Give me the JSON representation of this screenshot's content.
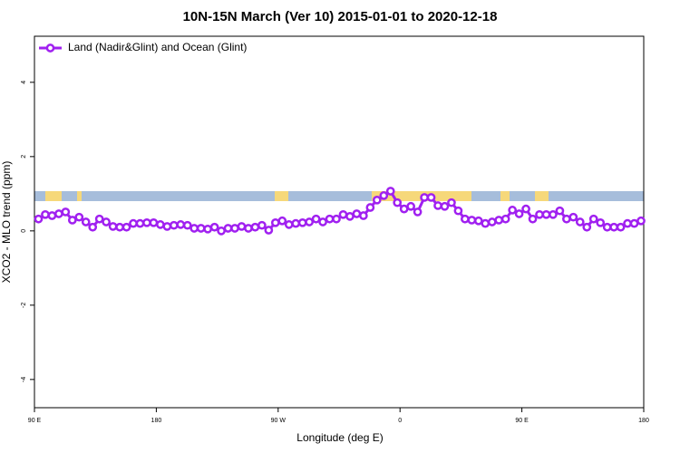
{
  "chart_data": {
    "type": "line",
    "title": "10N-15N March (Ver 10)   2015-01-01 to 2020-12-18",
    "xlabel": "Longitude (deg E)",
    "ylabel": "XCO2 - MLO trend (ppm)",
    "xlim": [
      90,
      540
    ],
    "xticks": [
      {
        "value": 90,
        "label": "90 E"
      },
      {
        "value": 180,
        "label": "180"
      },
      {
        "value": 270,
        "label": "90 W"
      },
      {
        "value": 360,
        "label": "0"
      },
      {
        "value": 450,
        "label": "90 E"
      },
      {
        "value": 540,
        "label": "180"
      }
    ],
    "ylim": [
      -4.76,
      5.24
    ],
    "yticks": [
      -4,
      -2,
      0,
      2,
      4
    ],
    "legend": "top-left",
    "x": [
      93,
      98,
      103,
      108,
      113,
      118,
      123,
      128,
      133,
      138,
      143,
      148,
      153,
      158,
      163,
      168,
      173,
      178,
      183,
      188,
      193,
      198,
      203,
      208,
      213,
      218,
      223,
      228,
      233,
      238,
      243,
      248,
      253,
      258,
      263,
      268,
      273,
      278,
      283,
      288,
      293,
      298,
      303,
      308,
      313,
      318,
      323,
      328,
      333,
      338,
      343,
      348,
      353,
      358,
      363,
      368,
      373,
      378,
      383,
      388,
      393,
      398,
      403,
      408,
      413,
      418,
      423,
      428,
      433,
      438,
      443,
      448,
      453,
      458,
      463,
      468,
      473,
      478,
      483,
      488,
      493,
      498,
      503,
      508,
      513,
      518,
      523,
      528,
      533,
      538
    ],
    "series": [
      {
        "name": "Land (Nadir&Glint) and Ocean (Glint)",
        "color": "#a020f0",
        "values": [
          0.32,
          0.44,
          0.41,
          0.46,
          0.51,
          0.29,
          0.37,
          0.24,
          0.1,
          0.32,
          0.24,
          0.12,
          0.1,
          0.1,
          0.2,
          0.2,
          0.22,
          0.22,
          0.17,
          0.12,
          0.15,
          0.17,
          0.15,
          0.07,
          0.07,
          0.05,
          0.1,
          0.0,
          0.07,
          0.07,
          0.12,
          0.07,
          0.1,
          0.15,
          0.02,
          0.22,
          0.27,
          0.17,
          0.2,
          0.22,
          0.24,
          0.32,
          0.24,
          0.32,
          0.32,
          0.44,
          0.39,
          0.46,
          0.41,
          0.63,
          0.83,
          0.95,
          1.07,
          0.76,
          0.59,
          0.66,
          0.51,
          0.9,
          0.9,
          0.68,
          0.66,
          0.76,
          0.54,
          0.32,
          0.29,
          0.27,
          0.2,
          0.24,
          0.29,
          0.32,
          0.56,
          0.46,
          0.59,
          0.32,
          0.44,
          0.44,
          0.44,
          0.54,
          0.32,
          0.37,
          0.24,
          0.1,
          0.32,
          0.22,
          0.1,
          0.1,
          0.1,
          0.2,
          0.2,
          0.27
        ]
      }
    ]
  }
}
